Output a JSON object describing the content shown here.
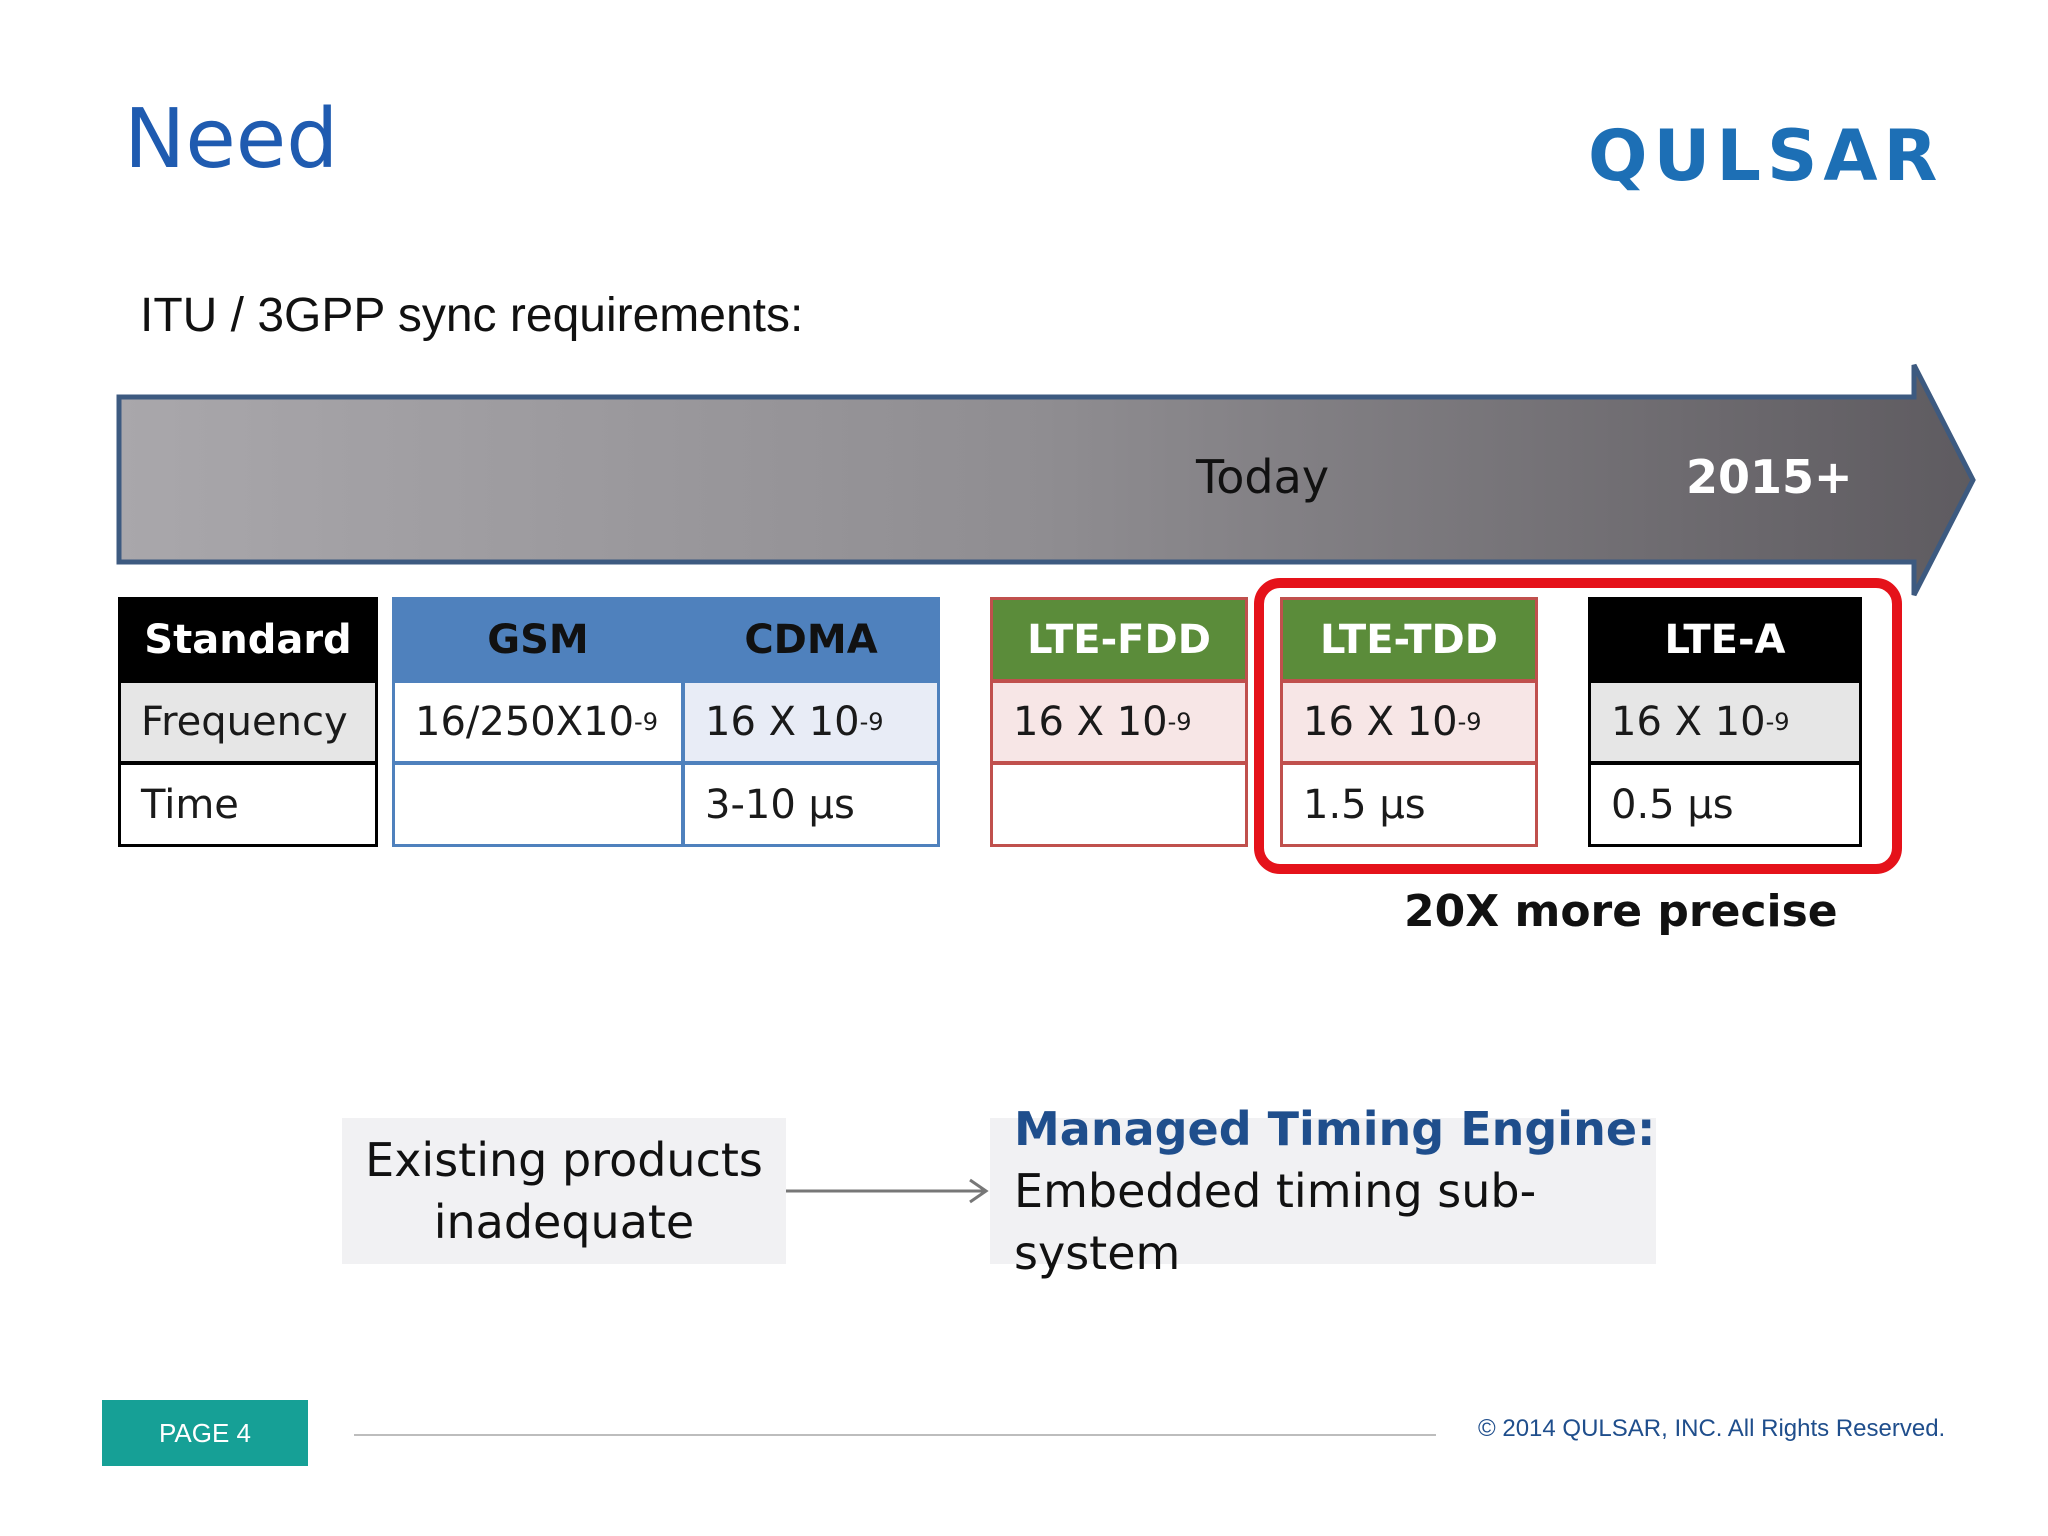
{
  "slide": {
    "title": "Need",
    "logo_text": "QULSAR",
    "subtitle": "ITU / 3GPP sync requirements:"
  },
  "timeline": {
    "today_label": "Today",
    "future_label": "2015+"
  },
  "table": {
    "row_labels": {
      "header": "Standard",
      "frequency": "Frequency",
      "time": "Time"
    },
    "groups": [
      {
        "name": "GSM",
        "frequency_base": "16/250X10",
        "frequency_exp": "-9",
        "time": ""
      },
      {
        "name": "CDMA",
        "frequency_base": "16 X 10",
        "frequency_exp": "-9",
        "time": "3-10 µs"
      },
      {
        "name": "LTE-FDD",
        "frequency_base": "16 X 10",
        "frequency_exp": "-9",
        "time": ""
      },
      {
        "name": "LTE-TDD",
        "frequency_base": "16 X 10",
        "frequency_exp": "-9",
        "time": "1.5 µs"
      },
      {
        "name": "LTE-A",
        "frequency_base": "16 X 10",
        "frequency_exp": "-9",
        "time": "0.5 µs"
      }
    ]
  },
  "callout": "20X more precise",
  "flow": {
    "left_line1": "Existing products",
    "left_line2": "inadequate",
    "right_line1": "Managed Timing Engine:",
    "right_line2": "Embedded timing sub-system"
  },
  "footer": {
    "page": "PAGE 4",
    "copyright": "© 2014 QULSAR, INC. All Rights Reserved."
  },
  "colors": {
    "title_blue": "#1f5bb0",
    "gsm_cdma_header": "#4f81bd",
    "lte_header": "#5b8c3a",
    "highlight_red": "#e5121a",
    "page_badge": "#16a096"
  }
}
